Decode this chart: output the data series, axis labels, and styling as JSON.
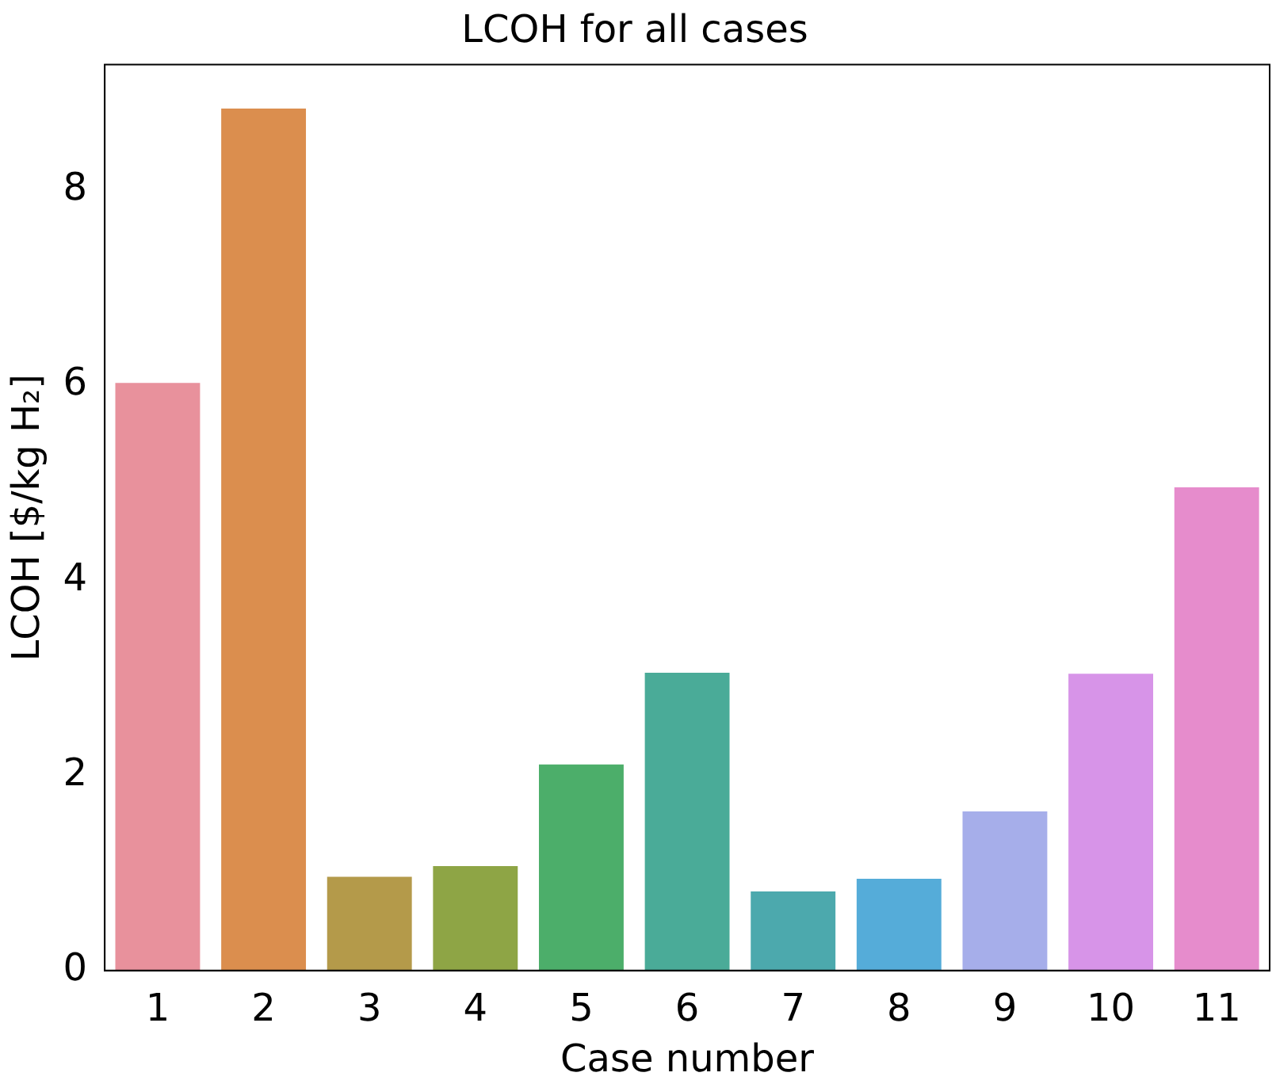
{
  "chart_data": {
    "type": "bar",
    "title": "LCOH for all cases",
    "xlabel": "Case number",
    "ylabel": "LCOH [$/kg H₂]",
    "categories": [
      "1",
      "2",
      "3",
      "4",
      "5",
      "6",
      "7",
      "8",
      "9",
      "10",
      "11"
    ],
    "values": [
      6.02,
      8.83,
      0.96,
      1.07,
      2.11,
      3.05,
      0.81,
      0.94,
      1.63,
      3.04,
      4.95
    ],
    "colors": [
      "#e8919c",
      "#db8e4e",
      "#b49a4a",
      "#8ea545",
      "#4cae6a",
      "#4aab98",
      "#4ca9ad",
      "#55acd9",
      "#a6aeea",
      "#d794e8",
      "#e68ccc"
    ],
    "ylim": [
      0,
      9.28
    ],
    "yticks": [
      0,
      2,
      4,
      6,
      8
    ],
    "grid": false,
    "legend": false
  }
}
